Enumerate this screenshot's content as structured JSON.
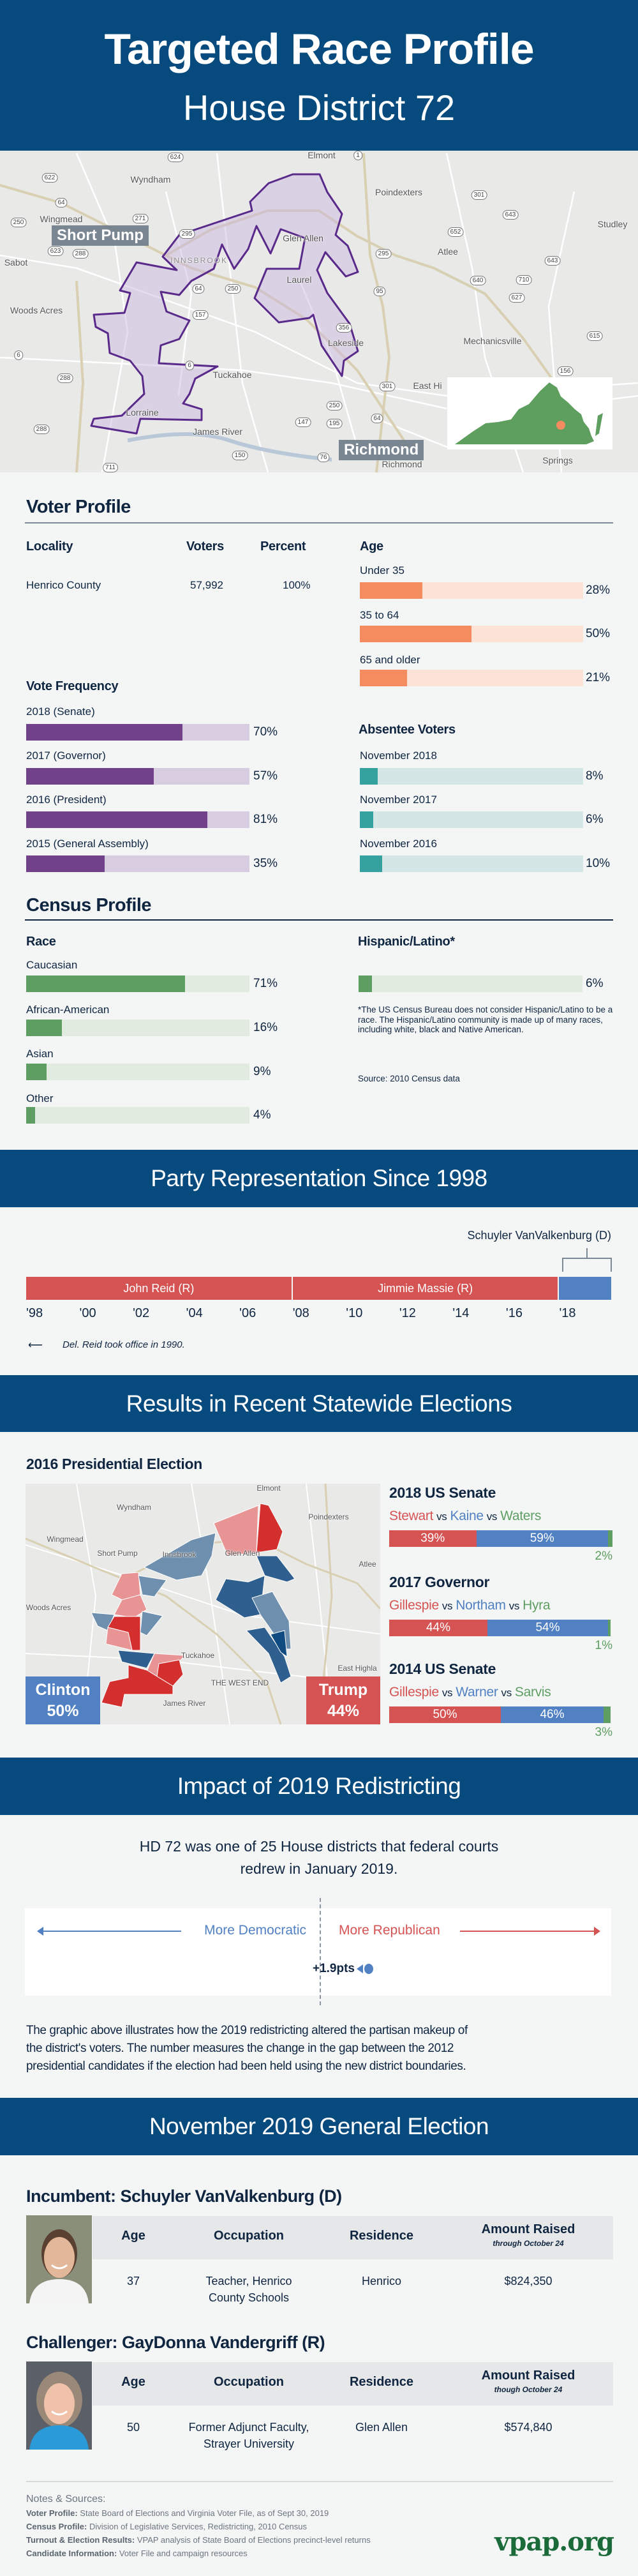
{
  "header": {
    "title": "Targeted Race Profile",
    "subtitle": "House District 72"
  },
  "map": {
    "places": [
      "Elmont",
      "Wyndham",
      "Poindexters",
      "Studley",
      "Wingmead",
      "Glen Allen",
      "Atlee",
      "Sabot",
      "INNSBROOK",
      "Laurel",
      "Woods Acres",
      "Lakeside",
      "Mechanicsville",
      "Tuckahoe",
      "Lorraine",
      "James River",
      "East Hi",
      "Springs",
      "Richmond"
    ],
    "routes": [
      "624",
      "622",
      "64",
      "250",
      "271",
      "295",
      "1",
      "301",
      "643",
      "652",
      "295",
      "643",
      "640",
      "710",
      "627",
      "95",
      "64",
      "250",
      "157",
      "356",
      "615",
      "6",
      "6",
      "288",
      "301",
      "250",
      "147",
      "195",
      "64",
      "288",
      "150",
      "76",
      "711",
      "156",
      "623",
      "288"
    ],
    "callout_short_pump": "Short Pump",
    "callout_richmond": "Richmond",
    "district_color": "#5a2a8a",
    "inset_state_color": "#5e9e5e",
    "inset_marker_color": "#f58c5f"
  },
  "voter_profile": {
    "title": "Voter Profile",
    "locality": {
      "headers": [
        "Locality",
        "Voters",
        "Percent"
      ],
      "rows": [
        {
          "locality": "Henrico County",
          "voters": "57,992",
          "percent": "100%"
        }
      ]
    },
    "age": {
      "title": "Age",
      "color": "#f58c5f",
      "track": "#fde3d6",
      "items": [
        {
          "label": "Under 35",
          "value": 28,
          "display": "28%"
        },
        {
          "label": "35 to 64",
          "value": 50,
          "display": "50%"
        },
        {
          "label": "65 and older",
          "value": 21,
          "display": "21%"
        }
      ]
    },
    "vote_frequency": {
      "title": "Vote Frequency",
      "color": "#71428a",
      "track": "#d8cde0",
      "items": [
        {
          "label": "2018 (Senate)",
          "value": 70,
          "display": "70%"
        },
        {
          "label": "2017 (Governor)",
          "value": 57,
          "display": "57%"
        },
        {
          "label": "2016 (President)",
          "value": 81,
          "display": "81%"
        },
        {
          "label": "2015 (General Assembly)",
          "value": 35,
          "display": "35%"
        }
      ]
    },
    "absentee": {
      "title": "Absentee Voters",
      "color": "#35a29f",
      "track": "#d4e7e6",
      "items": [
        {
          "label": "November 2018",
          "value": 8,
          "display": "8%"
        },
        {
          "label": "November 2017",
          "value": 6,
          "display": "6%"
        },
        {
          "label": "November 2016",
          "value": 10,
          "display": "10%"
        }
      ]
    }
  },
  "census": {
    "title": "Census Profile",
    "race": {
      "title": "Race",
      "color": "#5e9e62",
      "track": "#e1ebe0",
      "items": [
        {
          "label": "Caucasian",
          "value": 71,
          "display": "71%"
        },
        {
          "label": "African-American",
          "value": 16,
          "display": "16%"
        },
        {
          "label": "Asian",
          "value": 9,
          "display": "9%"
        },
        {
          "label": "Other",
          "value": 4,
          "display": "4%"
        }
      ]
    },
    "hispanic": {
      "title": "Hispanic/Latino*",
      "value": 6,
      "display": "6%",
      "footnote": "*The US Census Bureau does not consider Hispanic/Latino to be a race. The Hispanic/Latino community is made up of many races, including white, black and Native American.",
      "source": "Source: 2010 Census data"
    }
  },
  "party": {
    "title": "Party Representation Since 1998",
    "callout": "Schuyler VanValkenburg (D)",
    "segments": [
      {
        "name": "John Reid (R)",
        "start": 1998,
        "end": 2008,
        "color": "#d65353"
      },
      {
        "name": "Jimmie Massie (R)",
        "start": 2008,
        "end": 2018,
        "color": "#d65353"
      },
      {
        "name": "",
        "start": 2018,
        "end": 2020,
        "color": "#5181c3"
      }
    ],
    "ticks": [
      "'98",
      "'00",
      "'02",
      "'04",
      "'06",
      "'08",
      "'10",
      "'12",
      "'14",
      "'16",
      "'18"
    ],
    "note": "Del. Reid took office in 1990."
  },
  "results": {
    "title": "Results in Recent Statewide Elections",
    "pres": {
      "title": "2016 Presidential Election",
      "clinton_name": "Clinton",
      "clinton_pct": "50%",
      "trump_name": "Trump",
      "trump_pct": "44%"
    },
    "map_places": [
      "Elmont",
      "Wyndham",
      "Poindexters",
      "Wingmead",
      "Short Pump",
      "Innsbrook",
      "Glen Allen",
      "Atlee",
      "Woods Acres",
      "Tuckahoe",
      "THE WEST END",
      "James River",
      "East Highla"
    ],
    "vs": "vs",
    "races": [
      {
        "title": "2018 US Senate",
        "r": "Stewart",
        "d": "Kaine",
        "o": "Waters",
        "r_val": 39,
        "d_val": 59,
        "o_val": 2,
        "r_pct": "39%",
        "d_pct": "59%",
        "o_pct": "2%"
      },
      {
        "title": "2017 Governor",
        "r": "Gillespie",
        "d": "Northam",
        "o": "Hyra",
        "r_val": 44,
        "d_val": 54,
        "o_val": 1,
        "r_pct": "44%",
        "d_pct": "54%",
        "o_pct": "1%"
      },
      {
        "title": "2014 US Senate",
        "r": "Gillespie",
        "d": "Warner",
        "o": "Sarvis",
        "r_val": 50,
        "d_val": 46,
        "o_val": 3,
        "r_pct": "50%",
        "d_pct": "46%",
        "o_pct": "3%"
      }
    ],
    "colors": {
      "rep": "#d65353",
      "dem": "#5181c3",
      "other": "#5e9e62"
    }
  },
  "redistricting": {
    "title": "Impact of 2019 Redistricting",
    "intro_1": "HD 72 was one of 25 House districts that federal courts",
    "intro_2": "redrew in January 2019.",
    "dem_label": "More Democratic",
    "rep_label": "More Republican",
    "shift_value": 1.9,
    "shift_label": "+1.9pts",
    "explanation_1": "The graphic above illustrates how the 2019 redistricting altered the partisan makeup of",
    "explanation_2": "the district's voters. The number measures the change in the gap between the 2012",
    "explanation_3": "presidential candidates if the election had been held using the new district boundaries."
  },
  "election": {
    "title": "November 2019 General Election",
    "headers": {
      "age": "Age",
      "occupation": "Occupation",
      "residence": "Residence",
      "amount": "Amount Raised"
    },
    "candidates": [
      {
        "heading": "Incumbent: Schuyler VanValkenburg (D)",
        "amount_note": "through October 24",
        "age": "37",
        "occupation_1": "Teacher, Henrico",
        "occupation_2": "County Schools",
        "residence": "Henrico",
        "amount": "$824,350"
      },
      {
        "heading": "Challenger: GayDonna Vandergriff (R)",
        "amount_note": "though October 24",
        "age": "50",
        "occupation_1": "Former Adjunct Faculty,",
        "occupation_2": "Strayer University",
        "residence": "Glen Allen",
        "amount": "$574,840"
      }
    ]
  },
  "notes": {
    "title": "Notes & Sources:",
    "items": [
      {
        "label": "Voter Profile:",
        "text": " State Board of Elections and Virginia Voter File, as of Sept 30, 2019"
      },
      {
        "label": "Census Profile:",
        "text": " Division of Legislative Services, Redistricting, 2010 Census"
      },
      {
        "label": "Turnout & Election Results:",
        "text": " VPAP analysis of State Board of Elections precinct-level returns"
      },
      {
        "label": "Candidate Information:",
        "text": " Voter File and campaign resources"
      }
    ]
  },
  "logo": "vpap.org",
  "colors": {
    "band": "#064a7e",
    "background": "#f4f6f6",
    "logo": "#1b6b3a"
  }
}
